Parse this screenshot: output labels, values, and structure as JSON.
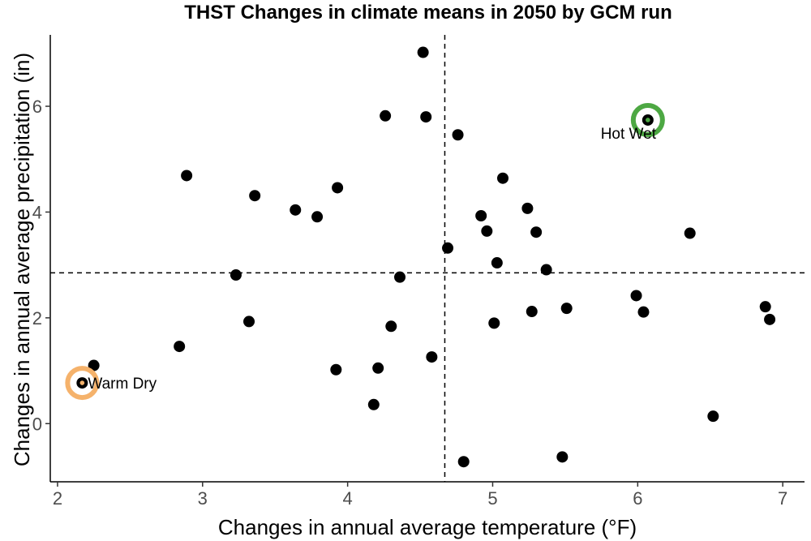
{
  "chart_data": {
    "type": "scatter",
    "title": "THST Changes in climate means in 2050 by GCM run",
    "xlabel": "Changes in annual average temperature (°F)",
    "ylabel": "Changes in annual average precipitation (in)",
    "xlim": [
      1.95,
      7.15
    ],
    "ylim": [
      -1.1,
      7.35
    ],
    "x_ticks": [
      "2",
      "3",
      "4",
      "5",
      "6",
      "7"
    ],
    "y_ticks": [
      "0",
      "2",
      "4",
      "6"
    ],
    "grid": false,
    "reference_lines": {
      "x": 4.67,
      "y": 2.85
    },
    "point_color": "#000000",
    "points": [
      {
        "x": 4.52,
        "y": 7.02
      },
      {
        "x": 4.26,
        "y": 5.82
      },
      {
        "x": 4.54,
        "y": 5.8
      },
      {
        "x": 4.76,
        "y": 5.46
      },
      {
        "x": 6.07,
        "y": 5.74
      },
      {
        "x": 2.89,
        "y": 4.69
      },
      {
        "x": 3.36,
        "y": 4.31
      },
      {
        "x": 3.93,
        "y": 4.46
      },
      {
        "x": 3.64,
        "y": 4.04
      },
      {
        "x": 3.79,
        "y": 3.91
      },
      {
        "x": 5.07,
        "y": 4.64
      },
      {
        "x": 5.24,
        "y": 4.07
      },
      {
        "x": 4.92,
        "y": 3.93
      },
      {
        "x": 4.96,
        "y": 3.64
      },
      {
        "x": 5.3,
        "y": 3.62
      },
      {
        "x": 6.36,
        "y": 3.6
      },
      {
        "x": 4.69,
        "y": 3.32
      },
      {
        "x": 5.03,
        "y": 3.04
      },
      {
        "x": 5.37,
        "y": 2.91
      },
      {
        "x": 3.23,
        "y": 2.81
      },
      {
        "x": 4.36,
        "y": 2.77
      },
      {
        "x": 5.99,
        "y": 2.42
      },
      {
        "x": 6.88,
        "y": 2.21
      },
      {
        "x": 6.04,
        "y": 2.11
      },
      {
        "x": 5.51,
        "y": 2.18
      },
      {
        "x": 5.27,
        "y": 2.12
      },
      {
        "x": 6.91,
        "y": 1.97
      },
      {
        "x": 3.32,
        "y": 1.93
      },
      {
        "x": 5.01,
        "y": 1.9
      },
      {
        "x": 4.3,
        "y": 1.84
      },
      {
        "x": 2.84,
        "y": 1.46
      },
      {
        "x": 4.58,
        "y": 1.26
      },
      {
        "x": 2.25,
        "y": 1.1
      },
      {
        "x": 3.92,
        "y": 1.02
      },
      {
        "x": 4.21,
        "y": 1.05
      },
      {
        "x": 2.17,
        "y": 0.77
      },
      {
        "x": 4.18,
        "y": 0.36
      },
      {
        "x": 6.52,
        "y": 0.14
      },
      {
        "x": 5.48,
        "y": -0.63
      },
      {
        "x": 4.8,
        "y": -0.72
      }
    ],
    "highlights": [
      {
        "label": "Hot Wet",
        "x": 6.07,
        "y": 5.74,
        "color": "#4da843",
        "label_position": "below"
      },
      {
        "label": "Warm Dry",
        "x": 2.17,
        "y": 0.77,
        "color": "#f5b26b",
        "label_position": "right"
      }
    ]
  }
}
